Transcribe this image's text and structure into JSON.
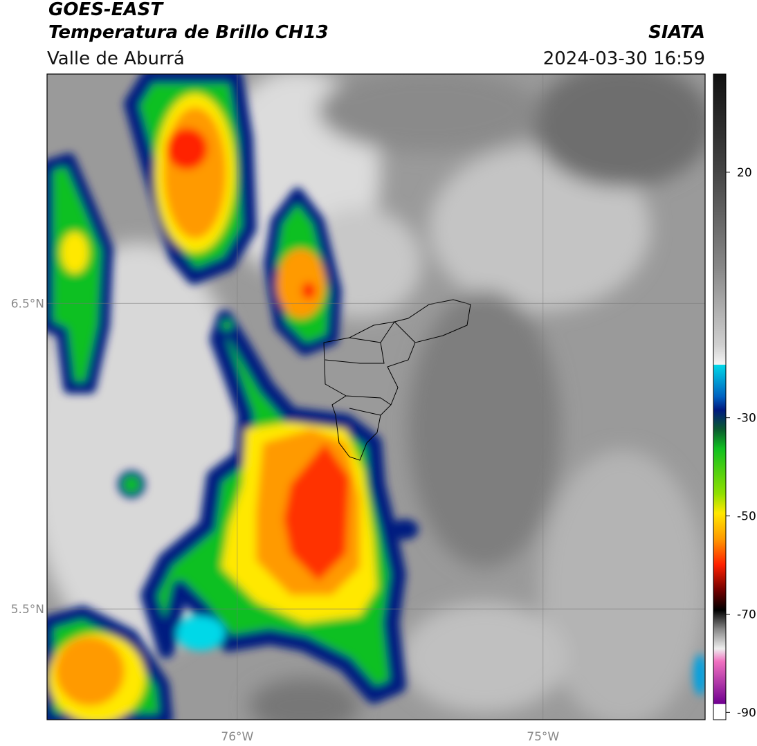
{
  "header": {
    "satellite": "GOES-EAST",
    "product": "Temperatura de Brillo CH13",
    "region": "Valle de Aburrá",
    "source": "SIATA",
    "datetime": "2024-03-30 16:59"
  },
  "map": {
    "lat_range": [
      5.138,
      7.25
    ],
    "lon_range": [
      -76.622,
      -74.47
    ],
    "grid": true,
    "lat_ticks": [
      {
        "value": 6.5,
        "label": "6.5°N"
      },
      {
        "value": 5.5,
        "label": "5.5°N"
      }
    ],
    "lon_ticks": [
      {
        "value": -76,
        "label": "76°W"
      },
      {
        "value": -75,
        "label": "75°W"
      }
    ]
  },
  "colorbar": {
    "range": [
      -91.5,
      40
    ],
    "ticks": [
      -90,
      -70,
      -50,
      -30,
      20
    ]
  }
}
